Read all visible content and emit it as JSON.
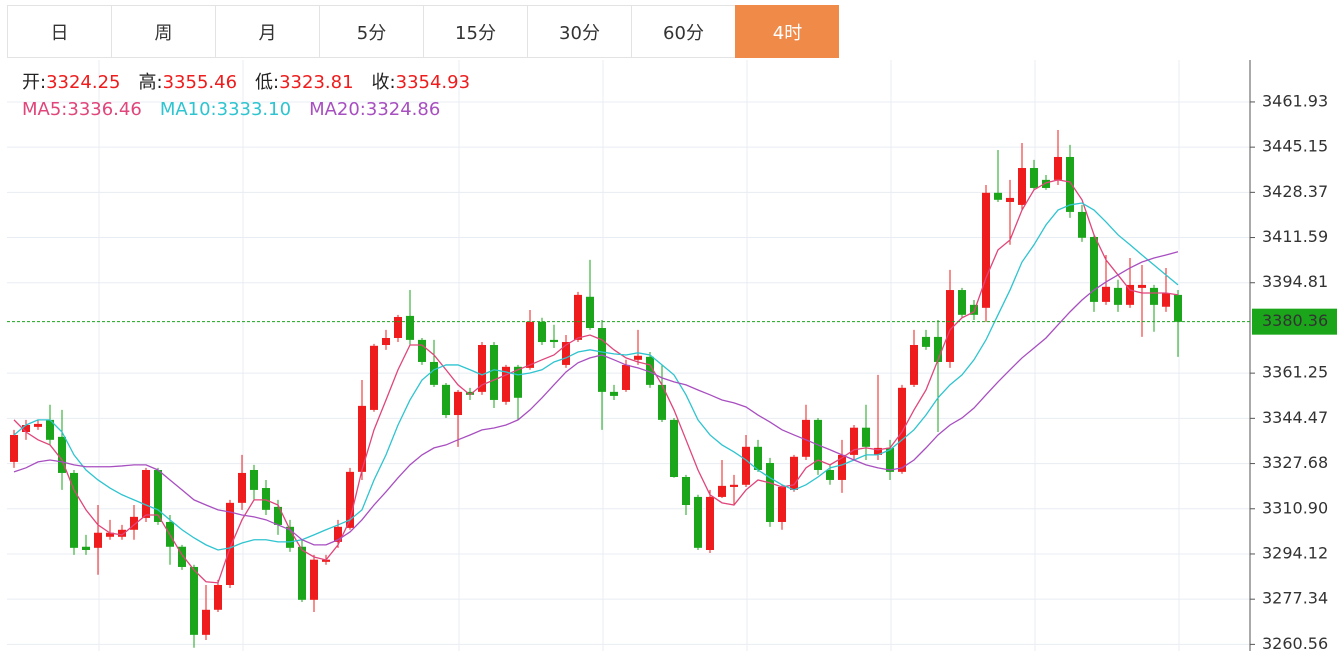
{
  "tabs": [
    "日",
    "周",
    "月",
    "5分",
    "15分",
    "30分",
    "60分",
    "4时"
  ],
  "active_tab": 7,
  "chart_data": {
    "type": "candlestick",
    "ohlc_summary": [
      {
        "label": "开:",
        "value": 3324.25
      },
      {
        "label": "高:",
        "value": 3355.46
      },
      {
        "label": "低:",
        "value": 3323.81
      },
      {
        "label": "收:",
        "value": 3354.93
      }
    ],
    "up_color": "#ee1c1c",
    "down_color": "#1aa51a",
    "ylim": [
      3258.1,
      3477.5
    ],
    "yticks": [
      3461.93,
      3445.15,
      3428.37,
      3411.59,
      3394.81,
      3361.25,
      3344.47,
      3327.68,
      {
        "value": 3310.9,
        "label": "3310.90"
      },
      3294.12,
      3277.34,
      3260.56
    ],
    "grid": true,
    "last_price": 3380.36,
    "open": [
      3328.3,
      3339.4,
      3341.3,
      3343.9,
      3337.6,
      3324.2,
      3296.8,
      3296.4,
      3300.5,
      3300.5,
      3303.1,
      3307.5,
      3325.3,
      3306.0,
      3296.8,
      3289.3,
      3264.1,
      3273.4,
      3282.6,
      3313.1,
      3325.3,
      3318.6,
      3311.6,
      3304.2,
      3296.8,
      3277.1,
      3291.2,
      3298.6,
      3303.8,
      3324.6,
      3347.6,
      3371.7,
      3374.3,
      3382.5,
      3373.6,
      3365.4,
      3356.9,
      3345.7,
      3354.3,
      3354.3,
      3371.7,
      3350.6,
      3363.6,
      3363.2,
      3380.3,
      3373.6,
      3364.3,
      3373.6,
      3389.6,
      3378.0,
      3354.3,
      3355.0,
      3366.2,
      3367.3,
      3356.9,
      3343.9,
      3322.7,
      3315.3,
      3295.6,
      3315.3,
      3319.0,
      3319.8,
      3333.9,
      3327.9,
      3306.0,
      3317.9,
      3330.2,
      3343.9,
      3325.3,
      3321.6,
      3330.9,
      3341.0,
      3330.9,
      3333.5,
      3324.6,
      3356.9,
      3374.7,
      3374.7,
      3365.4,
      3392.1,
      3386.6,
      3385.5,
      3428.2,
      3424.8,
      3423.7,
      3437.4,
      3433.0,
      3433.0,
      3441.5,
      3421.1,
      3411.8,
      3387.7,
      3392.9,
      3386.6,
      3392.9,
      3392.9,
      3385.9,
      3390.3
    ],
    "high": [
      3340.2,
      3343.9,
      3343.9,
      3349.5,
      3347.6,
      3325.3,
      3301.2,
      3312.3,
      3306.8,
      3304.9,
      3312.3,
      3326.1,
      3326.1,
      3308.6,
      3297.5,
      3290.1,
      3282.6,
      3284.5,
      3314.2,
      3330.9,
      3327.2,
      3321.6,
      3314.2,
      3306.8,
      3299.4,
      3293.8,
      3293.8,
      3306.8,
      3326.1,
      3358.7,
      3372.1,
      3377.3,
      3382.9,
      3392.1,
      3374.3,
      3373.6,
      3357.6,
      3355.0,
      3355.8,
      3372.8,
      3372.8,
      3364.3,
      3364.3,
      3384.7,
      3381.8,
      3379.2,
      3375.4,
      3391.4,
      3403.3,
      3381.0,
      3356.9,
      3366.2,
      3377.3,
      3369.1,
      3364.3,
      3344.6,
      3323.5,
      3316.1,
      3317.9,
      3329.0,
      3323.5,
      3338.3,
      3336.5,
      3329.8,
      3319.8,
      3330.9,
      3349.5,
      3344.6,
      3327.2,
      3336.5,
      3342.0,
      3349.5,
      3360.6,
      3336.5,
      3356.9,
      3377.3,
      3377.3,
      3381.0,
      3399.6,
      3392.9,
      3388.4,
      3431.1,
      3444.1,
      3433.0,
      3446.7,
      3440.4,
      3434.8,
      3451.5,
      3446.0,
      3423.7,
      3412.6,
      3405.1,
      3395.9,
      3404.0,
      3401.4,
      3394.0,
      3400.3,
      3392.1
    ],
    "low": [
      3326.1,
      3336.5,
      3340.2,
      3334.6,
      3317.9,
      3293.8,
      3293.8,
      3286.4,
      3299.4,
      3299.4,
      3299.4,
      3306.0,
      3304.9,
      3290.1,
      3288.2,
      3259.3,
      3262.2,
      3272.6,
      3281.5,
      3310.5,
      3314.2,
      3308.6,
      3301.2,
      3294.9,
      3276.3,
      3272.6,
      3290.1,
      3296.4,
      3303.1,
      3321.6,
      3346.9,
      3369.9,
      3372.8,
      3371.7,
      3364.3,
      3356.1,
      3344.6,
      3333.9,
      3351.3,
      3353.2,
      3348.3,
      3349.5,
      3343.9,
      3362.5,
      3371.7,
      3370.6,
      3363.2,
      3372.8,
      3377.3,
      3340.2,
      3351.3,
      3354.3,
      3364.3,
      3355.8,
      3343.1,
      3322.4,
      3308.6,
      3295.6,
      3294.5,
      3314.9,
      3312.3,
      3319.0,
      3324.6,
      3304.2,
      3303.1,
      3317.2,
      3329.0,
      3323.5,
      3319.8,
      3316.8,
      3329.0,
      3329.0,
      3329.0,
      3321.6,
      3323.9,
      3356.1,
      3369.9,
      3339.4,
      3363.2,
      3381.8,
      3381.0,
      3380.3,
      3424.8,
      3408.9,
      3421.8,
      3429.3,
      3429.3,
      3431.1,
      3418.9,
      3410.0,
      3384.0,
      3386.6,
      3384.0,
      3385.5,
      3374.7,
      3376.6,
      3384.0,
      3367.3
    ],
    "close": [
      3338.3,
      3342.0,
      3342.4,
      3336.5,
      3324.2,
      3296.4,
      3295.6,
      3302.0,
      3302.0,
      3303.1,
      3307.9,
      3325.3,
      3306.0,
      3296.8,
      3289.3,
      3264.1,
      3273.4,
      3282.6,
      3313.1,
      3324.2,
      3317.9,
      3310.5,
      3304.9,
      3296.4,
      3277.1,
      3292.0,
      3292.0,
      3304.2,
      3324.6,
      3349.1,
      3371.4,
      3374.3,
      3382.1,
      3373.6,
      3365.4,
      3356.9,
      3345.7,
      3354.3,
      3353.2,
      3371.7,
      3351.3,
      3363.6,
      3352.1,
      3380.3,
      3372.8,
      3372.8,
      3372.8,
      3390.3,
      3378.0,
      3354.3,
      3352.8,
      3364.3,
      3367.7,
      3356.9,
      3343.9,
      3322.7,
      3312.3,
      3296.4,
      3315.3,
      3319.4,
      3319.8,
      3333.9,
      3325.3,
      3306.0,
      3319.0,
      3330.2,
      3343.9,
      3325.3,
      3321.6,
      3330.9,
      3341.0,
      3333.9,
      3333.5,
      3324.6,
      3355.8,
      3371.7,
      3371.0,
      3365.4,
      3392.1,
      3382.9,
      3382.9,
      3428.2,
      3425.6,
      3426.3,
      3437.4,
      3430.0,
      3430.0,
      3441.5,
      3421.1,
      3411.5,
      3387.7,
      3393.3,
      3386.6,
      3394.0,
      3394.0,
      3386.6,
      3391.0,
      3380.3
    ],
    "series": [
      {
        "name": "MA5:",
        "last_value": 3336.46,
        "color": "#e0457b",
        "values": [
          3343.9,
          3339.4,
          3336.5,
          3334.6,
          3329.0,
          3317.9,
          3310.5,
          3304.9,
          3301.9,
          3301.2,
          3304.9,
          3308.6,
          3308.6,
          3301.2,
          3293.8,
          3288.2,
          3283.8,
          3283.4,
          3296.4,
          3306.8,
          3314.2,
          3314.2,
          3312.3,
          3303.1,
          3295.6,
          3293.0,
          3291.9,
          3297.5,
          3306.8,
          3325.3,
          3340.2,
          3351.3,
          3362.5,
          3371.7,
          3371.7,
          3368.0,
          3362.5,
          3356.9,
          3353.2,
          3356.9,
          3358.7,
          3360.6,
          3362.5,
          3364.3,
          3366.2,
          3368.0,
          3371.7,
          3374.3,
          3375.4,
          3373.6,
          3369.9,
          3366.9,
          3365.4,
          3364.3,
          3356.9,
          3347.6,
          3336.5,
          3325.3,
          3316.1,
          3313.1,
          3312.3,
          3317.9,
          3321.6,
          3320.5,
          3319.0,
          3319.8,
          3326.1,
          3329.0,
          3327.2,
          3329.8,
          3332.8,
          3333.5,
          3332.8,
          3333.5,
          3339.4,
          3347.6,
          3355.0,
          3366.2,
          3377.3,
          3381.8,
          3384.0,
          3396.6,
          3407.0,
          3410.7,
          3421.8,
          3429.3,
          3431.9,
          3433.0,
          3432.2,
          3425.6,
          3412.6,
          3403.3,
          3397.7,
          3392.1,
          3391.0,
          3391.0,
          3391.0,
          3390.3
        ]
      },
      {
        "name": "MA10:",
        "last_value": {
          "value": 3333.1,
          "label": "3333.10"
        },
        "color": "#2ec4d0",
        "values": [
          3338.3,
          3342.0,
          3343.9,
          3343.9,
          3339.4,
          3330.9,
          3325.3,
          3321.6,
          3318.6,
          3316.1,
          3314.2,
          3312.3,
          3310.5,
          3306.8,
          3303.1,
          3300.1,
          3297.5,
          3295.6,
          3296.4,
          3298.2,
          3299.4,
          3299.4,
          3298.6,
          3298.6,
          3299.4,
          3301.2,
          3303.1,
          3304.9,
          3306.8,
          3310.5,
          3321.6,
          3330.9,
          3342.0,
          3351.3,
          3358.7,
          3362.5,
          3364.3,
          3364.3,
          3362.5,
          3360.6,
          3362.5,
          3361.7,
          3360.6,
          3361.3,
          3362.5,
          3365.4,
          3366.9,
          3369.1,
          3369.9,
          3369.1,
          3368.4,
          3368.0,
          3368.8,
          3368.0,
          3364.3,
          3360.6,
          3353.2,
          3343.9,
          3338.3,
          3334.6,
          3332.0,
          3329.0,
          3325.3,
          3322.4,
          3319.8,
          3317.9,
          3319.8,
          3322.7,
          3326.1,
          3327.2,
          3329.0,
          3330.9,
          3330.9,
          3332.8,
          3336.5,
          3340.2,
          3345.7,
          3352.1,
          3356.9,
          3360.6,
          3366.2,
          3373.6,
          3382.9,
          3392.1,
          3402.5,
          3408.9,
          3416.3,
          3421.8,
          3423.7,
          3424.4,
          3421.8,
          3417.4,
          3412.6,
          3408.9,
          3405.1,
          3401.4,
          3397.7,
          3394.0
        ]
      },
      {
        "name": "MA20:",
        "last_value": 3324.86,
        "color": "#a84fc0",
        "values": [
          3324.6,
          3326.1,
          3328.3,
          3329.0,
          3328.3,
          3327.2,
          3326.5,
          3326.5,
          3326.5,
          3326.8,
          3327.2,
          3327.2,
          3325.3,
          3321.6,
          3317.9,
          3314.2,
          3312.3,
          3310.5,
          3309.7,
          3308.6,
          3307.9,
          3306.8,
          3304.9,
          3303.1,
          3299.4,
          3297.5,
          3297.5,
          3299.4,
          3302.3,
          3306.8,
          3312.3,
          3317.2,
          3322.4,
          3327.2,
          3330.9,
          3333.5,
          3334.6,
          3336.5,
          3338.3,
          3340.2,
          3340.9,
          3342.0,
          3343.9,
          3347.6,
          3352.1,
          3356.9,
          3361.7,
          3365.1,
          3366.9,
          3368.0,
          3366.2,
          3364.3,
          3363.2,
          3361.7,
          3359.5,
          3358.0,
          3356.9,
          3355.0,
          3353.2,
          3351.3,
          3350.2,
          3348.7,
          3345.7,
          3343.1,
          3340.2,
          3338.3,
          3336.5,
          3334.6,
          3332.8,
          3330.9,
          3329.0,
          3327.2,
          3326.1,
          3325.3,
          3326.1,
          3329.0,
          3333.5,
          3338.3,
          3342.0,
          3344.6,
          3348.3,
          3353.2,
          3358.0,
          3362.5,
          3366.9,
          3370.6,
          3374.3,
          3379.2,
          3384.0,
          3388.4,
          3392.1,
          3395.1,
          3397.7,
          3400.3,
          3402.5,
          3404.0,
          3405.1,
          3406.3
        ]
      }
    ]
  }
}
